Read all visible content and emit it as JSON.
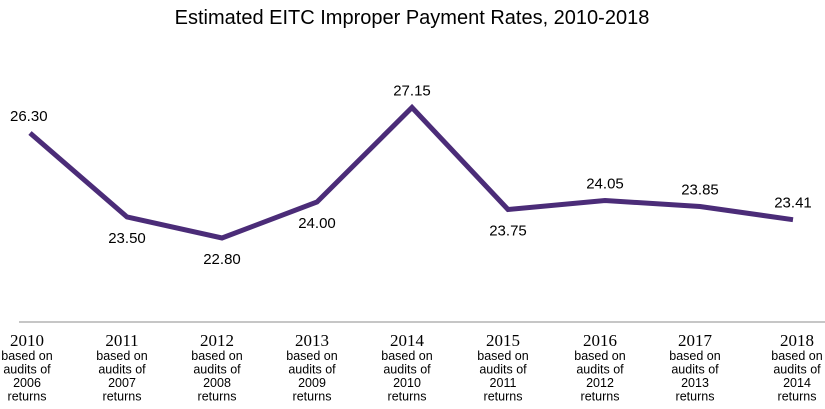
{
  "chart_data": {
    "type": "line",
    "title": "Estimated EITC Improper Payment Rates, 2010-2018",
    "xlabel": "",
    "ylabel": "",
    "grid": false,
    "legend": "none",
    "line_color": "#4b2c78",
    "categories": [
      "2010",
      "2011",
      "2012",
      "2013",
      "2014",
      "2015",
      "2016",
      "2017",
      "2018"
    ],
    "category_notes": [
      [
        "based on",
        "audits of",
        "2006",
        "returns"
      ],
      [
        "based on",
        "audits of",
        "2007",
        "returns"
      ],
      [
        "based on",
        "audits of",
        "2008",
        "returns"
      ],
      [
        "based on",
        "audits of",
        "2009",
        "returns"
      ],
      [
        "based on",
        "audits of",
        "2010",
        "returns"
      ],
      [
        "based on",
        "audits of",
        "2011",
        "returns"
      ],
      [
        "based on",
        "audits of",
        "2012",
        "returns"
      ],
      [
        "based on",
        "audits of",
        "2013",
        "returns"
      ],
      [
        "based on",
        "audits of",
        "2014",
        "returns"
      ]
    ],
    "values": [
      26.3,
      23.5,
      22.8,
      24.0,
      27.15,
      23.75,
      24.05,
      23.85,
      23.41
    ],
    "data_labels": [
      "26.30",
      "23.50",
      "22.80",
      "24.00",
      "27.15",
      "23.75",
      "24.05",
      "23.85",
      "23.41"
    ],
    "label_positions": [
      "above",
      "below",
      "below",
      "below",
      "above",
      "below",
      "above",
      "above",
      "above"
    ]
  }
}
